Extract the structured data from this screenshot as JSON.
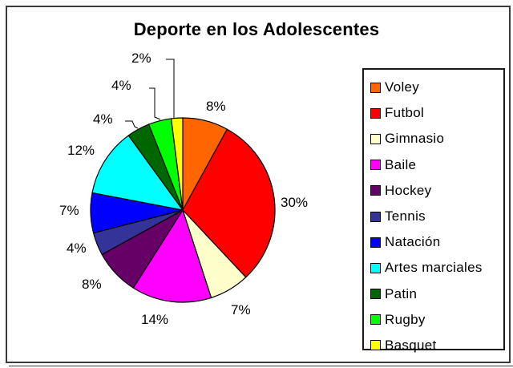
{
  "chart_data": {
    "type": "pie",
    "title": "Deporte en los Adolescentes",
    "categories": [
      "Voley",
      "Futbol",
      "Gimnasio",
      "Baile",
      "Hockey",
      "Tennis",
      "Natación",
      "Artes marciales",
      "Patin",
      "Rugby",
      "Basquet"
    ],
    "values": [
      8,
      30,
      7,
      14,
      8,
      4,
      7,
      12,
      4,
      4,
      2
    ],
    "labels": [
      "8%",
      "30%",
      "7%",
      "14%",
      "8%",
      "4%",
      "7%",
      "12%",
      "4%",
      "4%",
      "2%"
    ],
    "colors": [
      "#ff6600",
      "#ff0000",
      "#ffffcc",
      "#ff00ff",
      "#660066",
      "#333399",
      "#0000ff",
      "#00ffff",
      "#006600",
      "#00ff00",
      "#ffff00"
    ],
    "start_angle": "12 o'clock",
    "direction": "clockwise",
    "legend_position": "right",
    "units": "percent"
  },
  "title": "Deporte en los Adolescentes",
  "legend": {
    "items": [
      {
        "label": "Voley",
        "color": "#ff6600"
      },
      {
        "label": "Futbol",
        "color": "#ff0000"
      },
      {
        "label": "Gimnasio",
        "color": "#ffffcc"
      },
      {
        "label": "Baile",
        "color": "#ff00ff"
      },
      {
        "label": "Hockey",
        "color": "#660066"
      },
      {
        "label": "Tennis",
        "color": "#333399"
      },
      {
        "label": "Natación",
        "color": "#0000ff"
      },
      {
        "label": "Artes marciales",
        "color": "#00ffff"
      },
      {
        "label": "Patin",
        "color": "#006600"
      },
      {
        "label": "Rugby",
        "color": "#00ff00"
      },
      {
        "label": "Basquet",
        "color": "#ffff00"
      }
    ]
  }
}
